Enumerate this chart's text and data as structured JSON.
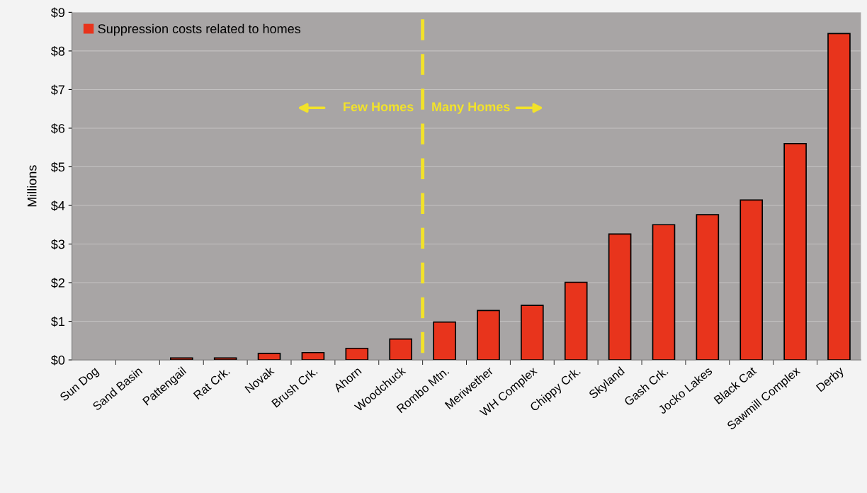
{
  "chart_data": {
    "type": "bar",
    "ylabel": "Millions",
    "categories": [
      "Sun Dog",
      "Sand Basin",
      "Pattengail",
      "Rat Crk.",
      "Novak",
      "Brush Crk.",
      "Ahorn",
      "Woodchuck",
      "Rombo Mtn.",
      "Meriwether",
      "WH Complex",
      "Chippy Crk.",
      "Skyland",
      "Gash Crk.",
      "Jocko Lakes",
      "Black Cat",
      "Sawmill Complex",
      "Derby"
    ],
    "series": [
      {
        "name": "Suppression costs related to homes",
        "color": "#e8341c",
        "values": [
          0,
          0,
          0.05,
          0.05,
          0.17,
          0.19,
          0.3,
          0.54,
          0.98,
          1.28,
          1.41,
          2.01,
          3.26,
          3.5,
          3.76,
          4.14,
          5.6,
          8.45
        ]
      }
    ],
    "ylim": [
      0,
      9
    ],
    "yticks": [
      {
        "value": 0,
        "label": "$0"
      },
      {
        "value": 1,
        "label": "$1"
      },
      {
        "value": 2,
        "label": "$2"
      },
      {
        "value": 3,
        "label": "$3"
      },
      {
        "value": 4,
        "label": "$4"
      },
      {
        "value": 5,
        "label": "$5"
      },
      {
        "value": 6,
        "label": "$6"
      },
      {
        "value": 7,
        "label": "$7"
      },
      {
        "value": 8,
        "label": "$8"
      },
      {
        "value": 9,
        "label": "$9"
      }
    ],
    "annotations": [
      "Few Homes",
      "Many Homes"
    ],
    "grid": "y",
    "legend": "top left"
  }
}
